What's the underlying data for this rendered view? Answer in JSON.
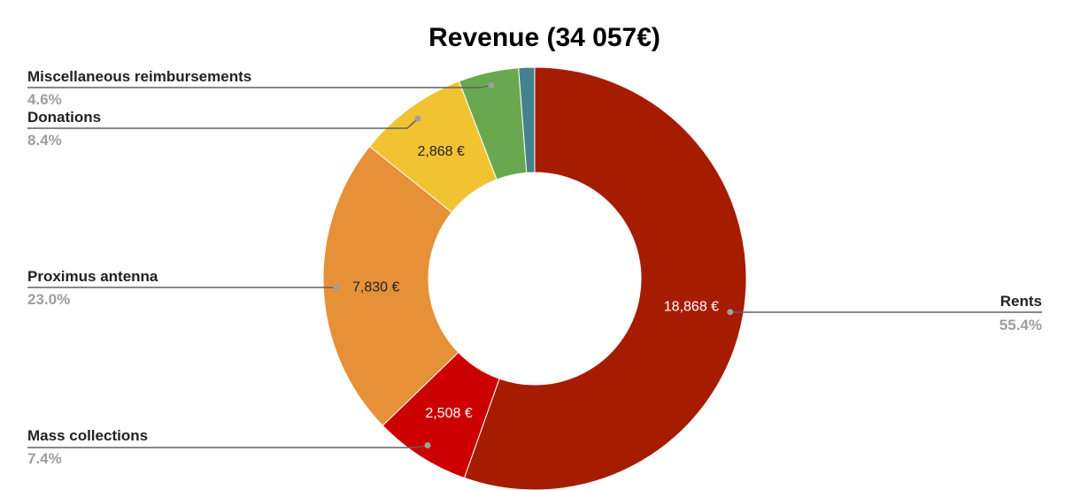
{
  "chart_data": {
    "type": "pie",
    "title": "Revenue (34 057€)",
    "donut": true,
    "slices": [
      {
        "name": "Rents",
        "value": 18868,
        "value_label": "18,868 €",
        "percent_label": "55.4%",
        "color": "#a61c00"
      },
      {
        "name": "Mass collections",
        "value": 2508,
        "value_label": "2,508 €",
        "percent_label": "7.4%",
        "color": "#cc0000"
      },
      {
        "name": "Proximus antenna",
        "value": 7830,
        "value_label": "7,830 €",
        "percent_label": "23.0%",
        "color": "#e69138"
      },
      {
        "name": "Donations",
        "value": 2868,
        "value_label": "2,868 €",
        "percent_label": "8.4%",
        "color": "#f1c232"
      },
      {
        "name": "Miscellaneous reimbursements",
        "value": 1567,
        "value_label": "",
        "percent_label": "4.6%",
        "color": "#6aa84f"
      },
      {
        "name": "",
        "value": 416,
        "value_label": "",
        "percent_label": "",
        "color": "#45818e"
      }
    ],
    "legend": "none"
  }
}
